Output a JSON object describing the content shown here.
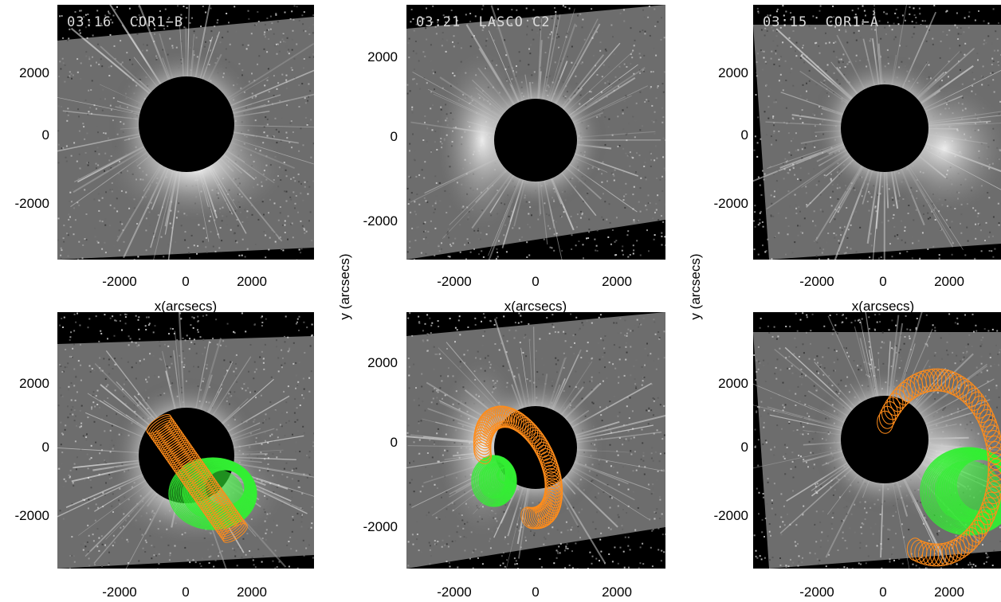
{
  "panels": [
    {
      "title": "03:16  COR1−B"
    },
    {
      "title": "03:21  LASCO C2"
    },
    {
      "title": "03:15  COR1−A"
    },
    {
      "title": ""
    },
    {
      "title": ""
    },
    {
      "title": ""
    }
  ],
  "xticks": [
    "-2000",
    "0",
    "2000"
  ],
  "yticks_a": [
    "2000",
    "0",
    "-2000"
  ],
  "yticks_b": [
    "2000",
    "0",
    "-2000"
  ],
  "xlabel": "x(arcsecs)",
  "ylabel": "y (arcsecs)",
  "colors": {
    "flux_rope_1": "#ff8c1a",
    "flux_rope_2": "#33ee33",
    "background": "#000000"
  }
}
